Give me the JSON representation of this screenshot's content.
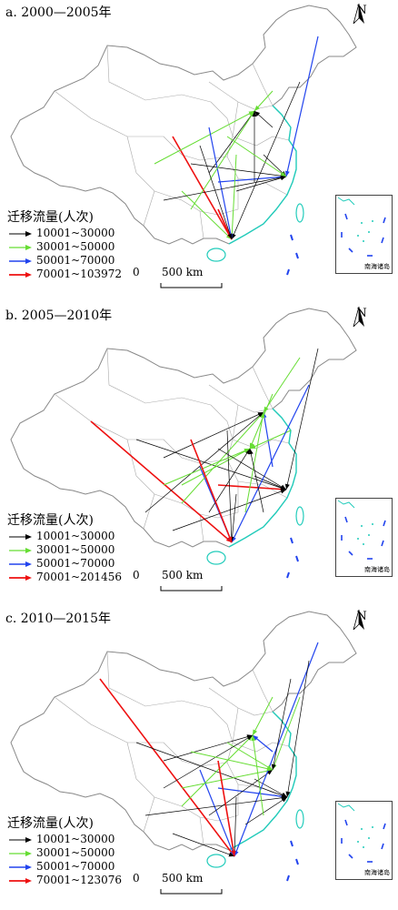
{
  "panels": [
    {
      "title": "a. 2000—2005年",
      "legend_title": "迁移流量(人次)",
      "legend": [
        "10001~30000",
        "30001~50000",
        "50001~70000",
        "70001~103972"
      ],
      "scale_zero": "0",
      "scale_label": "500 km",
      "north": "N",
      "inset_label": "南海诸岛"
    },
    {
      "title": "b. 2005—2010年",
      "legend_title": "迁移流量(人次)",
      "legend": [
        "10001~30000",
        "30001~50000",
        "50001~70000",
        "70001~201456"
      ],
      "scale_zero": "0",
      "scale_label": "500 km",
      "north": "N",
      "inset_label": "南海诸岛"
    },
    {
      "title": "c. 2010—2015年",
      "legend_title": "迁移流量(人次)",
      "legend": [
        "10001~30000",
        "30001~50000",
        "50001~70000",
        "70001~123076"
      ],
      "scale_zero": "0",
      "scale_label": "500 km",
      "north": "N",
      "inset_label": "南海诸岛"
    }
  ],
  "colors": {
    "class1": "#000000",
    "class2": "#66dd33",
    "class3": "#2244ee",
    "class4": "#ee1111",
    "boundary": "#888888",
    "coast": "#22ccbb"
  },
  "icons": [
    "north-arrow-icon",
    "scale-bar-icon"
  ]
}
